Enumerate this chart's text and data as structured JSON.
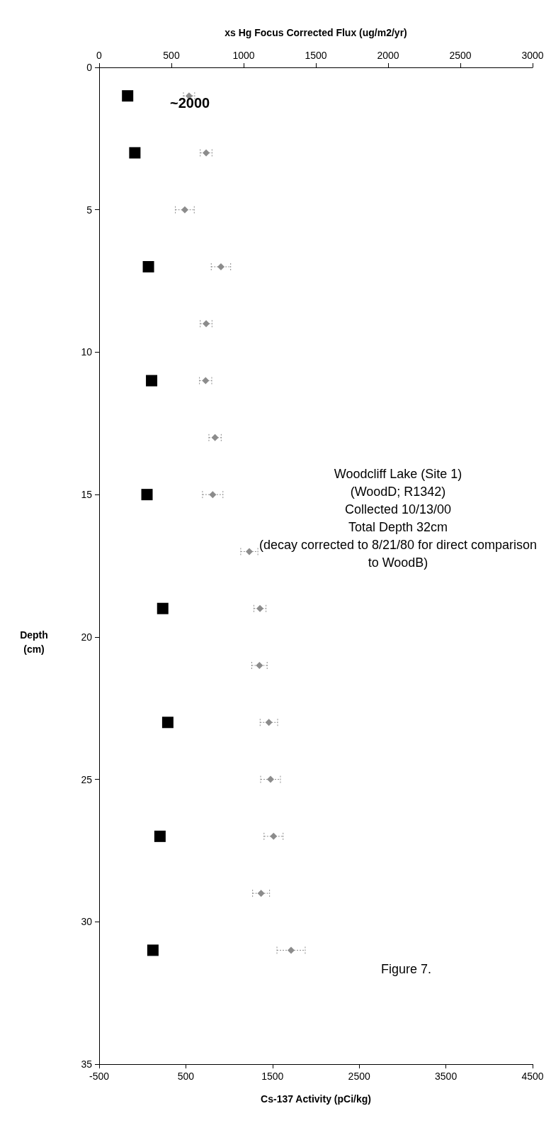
{
  "chart_data": {
    "type": "scatter",
    "xlabel": "Cs-137 Activity (pCi/kg)",
    "x2label": "xs Hg Focus Corrected Flux (ug/m2/yr)",
    "ylabel": "Depth (cm)",
    "xlim": [
      -500,
      4500
    ],
    "xticks": [
      -500,
      500,
      1500,
      2500,
      3500,
      4500
    ],
    "x2lim": [
      0,
      3000
    ],
    "x2ticks": [
      0,
      500,
      1000,
      1500,
      2000,
      2500,
      3000
    ],
    "ylim": [
      35,
      0
    ],
    "yticks": [
      0,
      5,
      10,
      15,
      20,
      25,
      30,
      35
    ],
    "grid": false,
    "series": [
      {
        "axis": "x2",
        "marker": "square",
        "color": "#000000",
        "x": [
          197,
          247,
          341,
          363,
          331,
          440,
          475,
          421,
          372
        ],
        "values": [
          1,
          3,
          7,
          11,
          15,
          19,
          23,
          27,
          31
        ]
      },
      {
        "marker": "diamond",
        "color": "#8c8c8c",
        "x": [
          537,
          734,
          488,
          905,
          734,
          728,
          837,
          810,
          1232,
          1355,
          1349,
          1458,
          1477,
          1512,
          1368,
          1714
        ],
        "values": [
          1,
          3,
          5,
          7,
          9,
          11,
          13,
          15,
          17,
          19,
          21,
          23,
          25,
          27,
          29,
          31
        ],
        "xerrors": [
          65,
          68,
          109,
          112,
          68,
          71,
          71,
          118,
          99,
          70,
          89,
          101,
          114,
          110,
          98,
          163
        ]
      }
    ],
    "annotations": [
      "~2000",
      "Woodcliff Lake (Site 1)\n(WoodD; R1342)\nCollected 10/13/00\nTotal Depth 32cm\n(decay corrected to 8/21/80 for direct comparison\nto WoodB)",
      "Figure 7."
    ]
  }
}
